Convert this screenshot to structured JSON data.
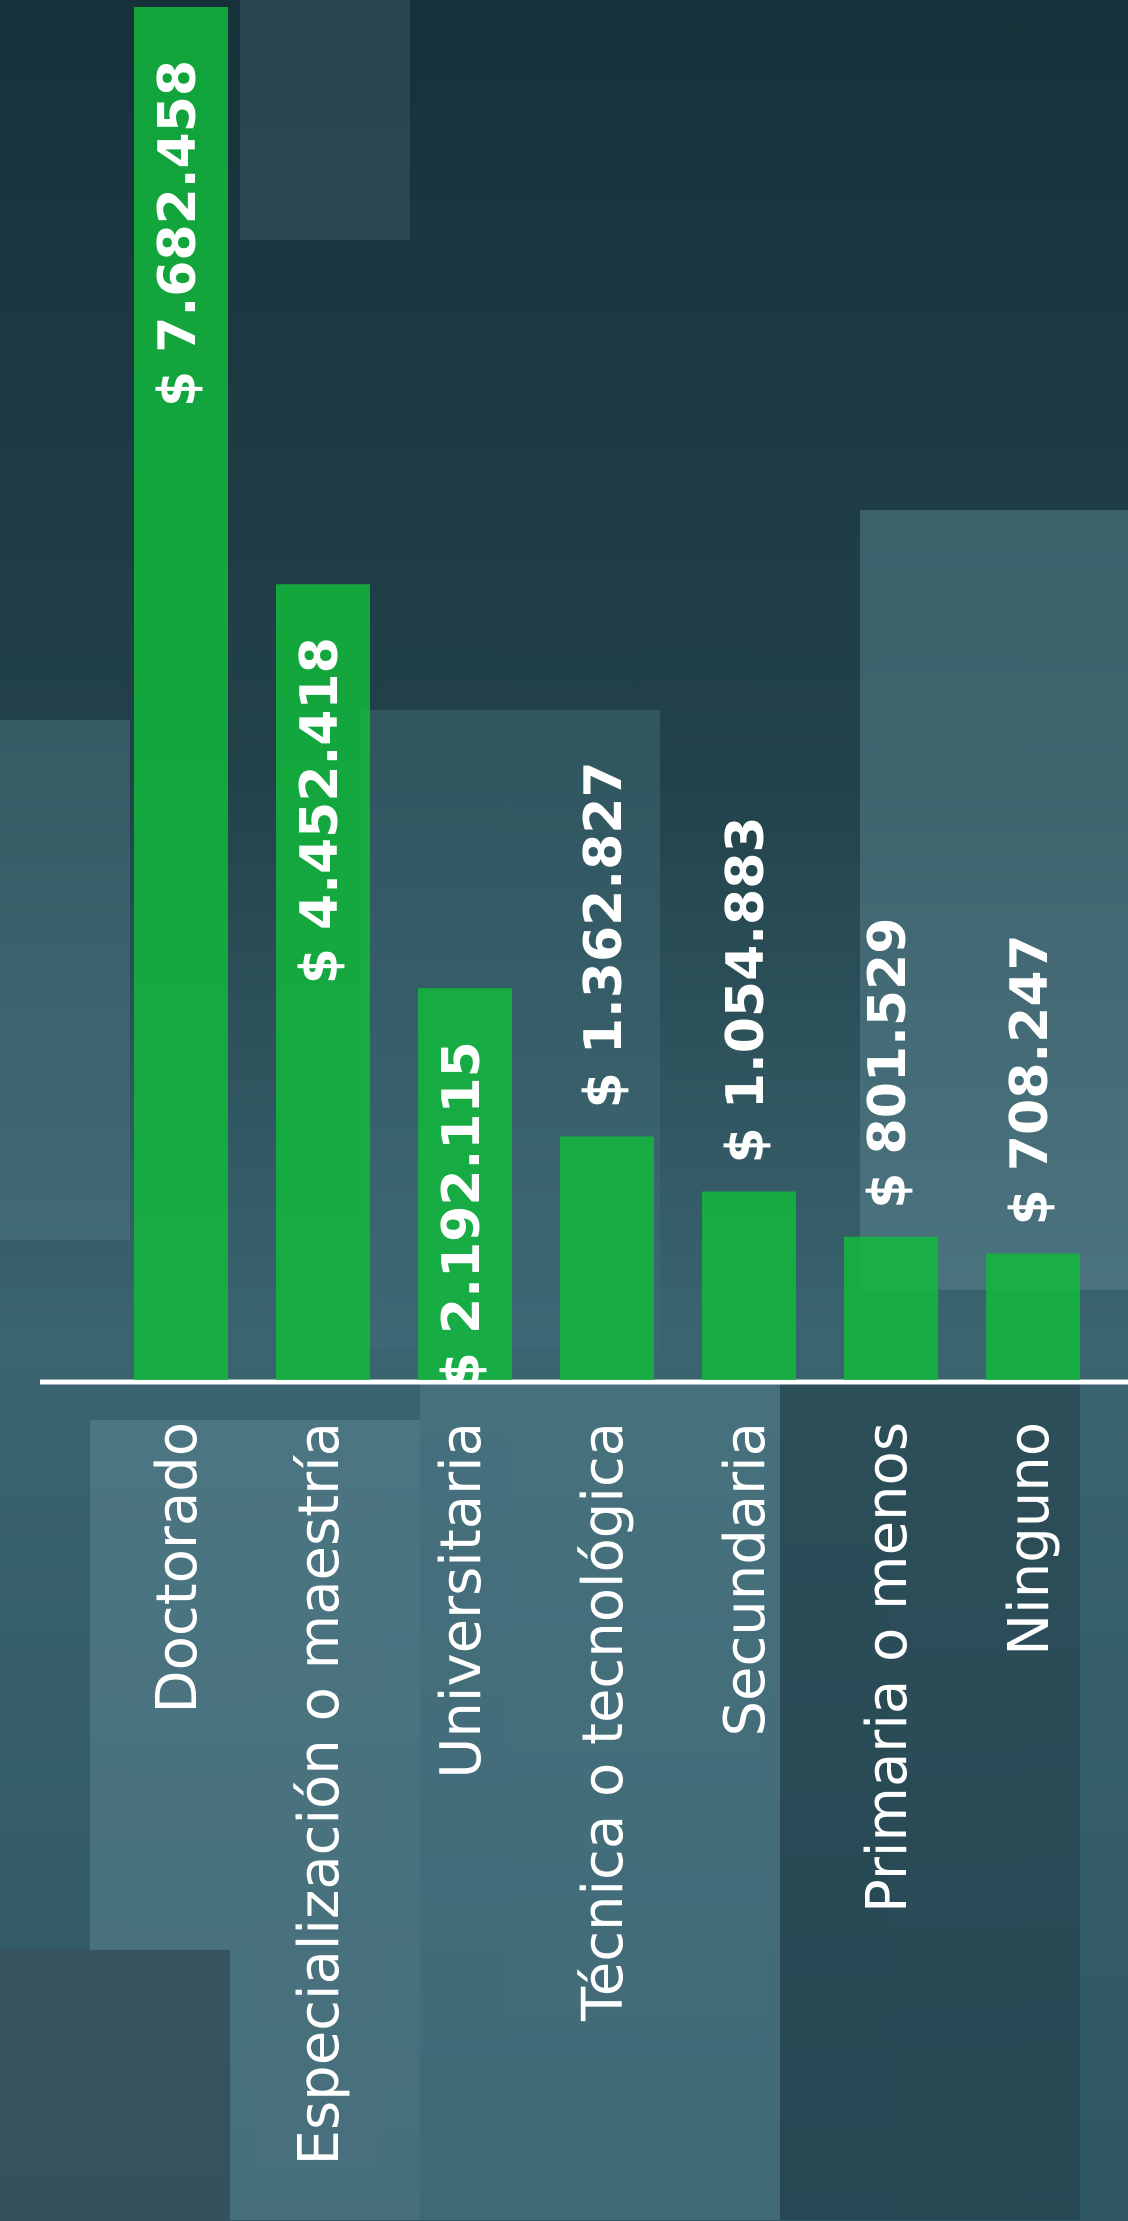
{
  "chart_data": {
    "type": "bar",
    "categories": [
      "Doctorado",
      "Especialización o maestría",
      "Universitaria",
      "Técnica o tecnológica",
      "Secundaria",
      "Primaria o menos",
      "Ninguno"
    ],
    "values": [
      7682458,
      4452418,
      2192115,
      1362827,
      1054883,
      801529,
      708247
    ],
    "value_labels": [
      "$ 7.682.458",
      "$ 4.452.418",
      "$ 2.192.115",
      "$ 1.362.827",
      "$ 1.054.883",
      "$ 801.529",
      "$ 708.247"
    ],
    "color": "#12b83c"
  }
}
